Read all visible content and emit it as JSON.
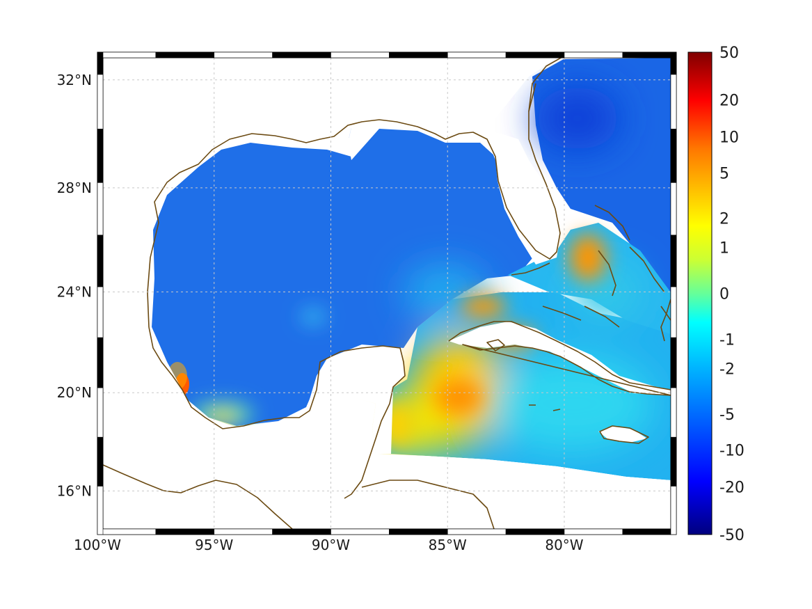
{
  "map": {
    "projection": "mercator",
    "lon_range": [
      -100,
      -75.2
    ],
    "lat_range": [
      14.2,
      33.0
    ],
    "grid": true,
    "lon_ticks": [
      {
        "value": -100,
        "label": "100°W"
      },
      {
        "value": -95,
        "label": "95°W"
      },
      {
        "value": -90,
        "label": "90°W"
      },
      {
        "value": -85,
        "label": "85°W"
      },
      {
        "value": -80,
        "label": "80°W"
      }
    ],
    "lat_ticks": [
      {
        "value": 32,
        "label": "32°N"
      },
      {
        "value": 28,
        "label": "28°N"
      },
      {
        "value": 24,
        "label": "24°N"
      },
      {
        "value": 20,
        "label": "20°N"
      },
      {
        "value": 16,
        "label": "16°N"
      }
    ],
    "colors": {
      "coastline": "#6b4a12",
      "land": "#ffffff",
      "no_data": "#ffffff",
      "grid": "#c8c8c8",
      "frame_dark": "#000000",
      "frame_light": "#ffffff"
    }
  },
  "colorbar": {
    "colormap": "jet",
    "placement": "right",
    "tick_labels": [
      "50",
      "20",
      "10",
      "5",
      "2",
      "1",
      "0",
      "-1",
      "-2",
      "-5",
      "-10",
      "-20",
      "-50"
    ]
  }
}
